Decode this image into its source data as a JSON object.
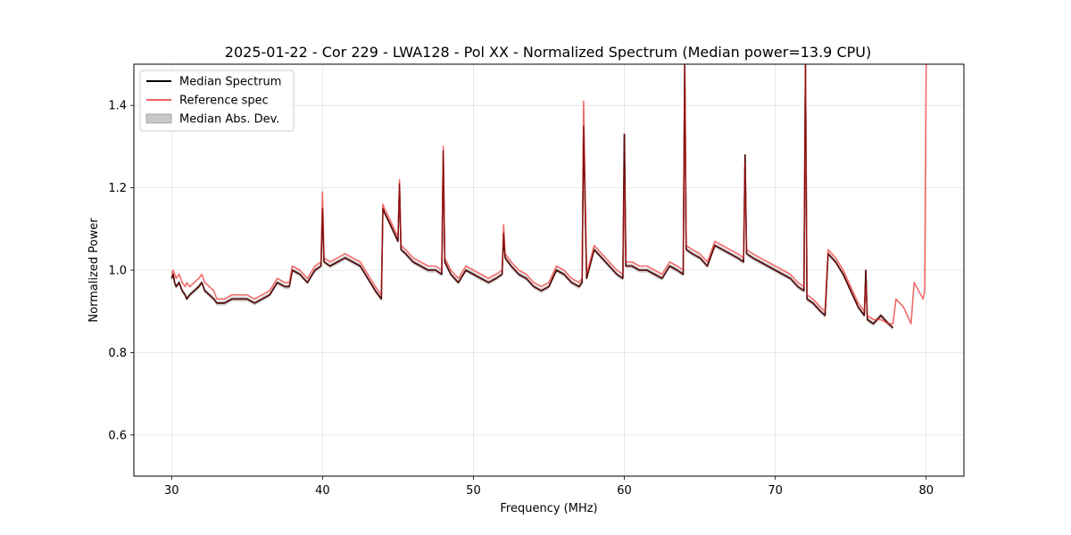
{
  "chart_data": {
    "type": "line",
    "title": "2025-01-22 - Cor 229 - LWA128 - Pol XX - Normalized Spectrum (Median power=13.9 CPU)",
    "xlabel": "Frequency (MHz)",
    "ylabel": "Normalized Power",
    "xlim": [
      27.5,
      82.5
    ],
    "ylim": [
      0.5,
      1.5
    ],
    "xticks": [
      30,
      40,
      50,
      60,
      70,
      80
    ],
    "yticks": [
      0.6,
      0.8,
      1.0,
      1.2,
      1.4
    ],
    "xtick_labels": [
      "30",
      "40",
      "50",
      "60",
      "70",
      "80"
    ],
    "ytick_labels": [
      "0.6",
      "0.8",
      "1.0",
      "1.2",
      "1.4"
    ],
    "grid": true,
    "legend_position": "top-left",
    "colors": {
      "median": "#000000",
      "reference": "#f06262",
      "mad": "#a8a8a8",
      "overlap": "#7a0000"
    },
    "legend": [
      {
        "label": "Median Spectrum",
        "kind": "line",
        "color": "#000000"
      },
      {
        "label": "Reference spec",
        "kind": "line",
        "color": "#f06262"
      },
      {
        "label": "Median Abs. Dev.",
        "kind": "patch",
        "color": "#c8c8c8"
      }
    ],
    "series": [
      {
        "name": "Reference spec",
        "x": [
          30.0,
          30.1,
          30.2,
          30.3,
          30.5,
          30.7,
          30.9,
          31.0,
          31.2,
          31.5,
          31.8,
          32.0,
          32.2,
          32.5,
          32.8,
          33.0,
          33.5,
          34.0,
          34.5,
          35.0,
          35.5,
          36.0,
          36.5,
          37.0,
          37.5,
          37.8,
          38.0,
          38.5,
          39.0,
          39.5,
          39.9,
          40.0,
          40.1,
          40.5,
          41.0,
          41.5,
          42.0,
          42.5,
          43.0,
          43.5,
          43.9,
          44.0,
          44.1,
          44.5,
          45.0,
          45.1,
          45.2,
          45.5,
          46.0,
          46.5,
          47.0,
          47.5,
          47.9,
          48.0,
          48.1,
          48.5,
          49.0,
          49.5,
          50.0,
          50.5,
          51.0,
          51.5,
          51.9,
          52.0,
          52.1,
          52.5,
          53.0,
          53.5,
          54.0,
          54.5,
          55.0,
          55.5,
          56.0,
          56.5,
          57.0,
          57.2,
          57.3,
          57.5,
          58.0,
          58.5,
          59.0,
          59.5,
          59.9,
          60.0,
          60.1,
          60.5,
          61.0,
          61.5,
          62.0,
          62.5,
          63.0,
          63.5,
          63.9,
          64.0,
          64.1,
          64.5,
          65.0,
          65.5,
          66.0,
          66.5,
          67.0,
          67.5,
          67.9,
          68.0,
          68.1,
          68.5,
          69.0,
          69.5,
          70.0,
          70.5,
          71.0,
          71.5,
          71.9,
          72.0,
          72.1,
          72.5,
          73.0,
          73.3,
          73.5,
          74.0,
          74.5,
          75.0,
          75.5,
          75.9,
          76.0,
          76.1,
          76.5,
          77.0,
          77.5,
          77.8,
          78.0,
          78.5,
          79.0,
          79.2,
          79.5,
          79.8,
          79.9,
          80.0
        ],
        "values": [
          0.99,
          1.0,
          0.99,
          0.98,
          0.99,
          0.97,
          0.96,
          0.97,
          0.96,
          0.97,
          0.98,
          0.99,
          0.97,
          0.96,
          0.95,
          0.93,
          0.93,
          0.94,
          0.94,
          0.94,
          0.93,
          0.94,
          0.95,
          0.98,
          0.97,
          0.97,
          1.01,
          1.0,
          0.98,
          1.01,
          1.02,
          1.19,
          1.03,
          1.02,
          1.03,
          1.04,
          1.03,
          1.02,
          0.99,
          0.96,
          0.94,
          1.16,
          1.15,
          1.12,
          1.08,
          1.22,
          1.06,
          1.05,
          1.03,
          1.02,
          1.01,
          1.01,
          1.0,
          1.3,
          1.03,
          1.0,
          0.98,
          1.01,
          1.0,
          0.99,
          0.98,
          0.99,
          1.0,
          1.11,
          1.04,
          1.02,
          1.0,
          0.99,
          0.97,
          0.96,
          0.97,
          1.01,
          1.0,
          0.98,
          0.97,
          0.98,
          1.41,
          0.99,
          1.06,
          1.04,
          1.02,
          1.0,
          0.99,
          1.24,
          1.02,
          1.02,
          1.01,
          1.01,
          1.0,
          0.99,
          1.02,
          1.01,
          1.0,
          1.5,
          1.06,
          1.05,
          1.04,
          1.02,
          1.07,
          1.06,
          1.05,
          1.04,
          1.03,
          1.26,
          1.05,
          1.04,
          1.03,
          1.02,
          1.01,
          1.0,
          0.99,
          0.97,
          0.96,
          1.5,
          0.94,
          0.93,
          0.91,
          0.9,
          1.05,
          1.03,
          1.0,
          0.96,
          0.92,
          0.9,
          0.97,
          0.89,
          0.88,
          0.88,
          0.87,
          0.87,
          0.93,
          0.91,
          0.87,
          0.97,
          0.95,
          0.93,
          0.95,
          1.5
        ]
      },
      {
        "name": "Median Spectrum",
        "x": [
          30.0,
          30.1,
          30.2,
          30.3,
          30.5,
          30.7,
          30.9,
          31.0,
          31.2,
          31.5,
          31.8,
          32.0,
          32.2,
          32.5,
          32.8,
          33.0,
          33.5,
          34.0,
          34.5,
          35.0,
          35.5,
          36.0,
          36.5,
          37.0,
          37.5,
          37.8,
          38.0,
          38.5,
          39.0,
          39.5,
          39.9,
          40.0,
          40.1,
          40.5,
          41.0,
          41.5,
          42.0,
          42.5,
          43.0,
          43.5,
          43.9,
          44.0,
          44.1,
          44.5,
          45.0,
          45.1,
          45.2,
          45.5,
          46.0,
          46.5,
          47.0,
          47.5,
          47.9,
          48.0,
          48.1,
          48.5,
          49.0,
          49.5,
          50.0,
          50.5,
          51.0,
          51.5,
          51.9,
          52.0,
          52.1,
          52.5,
          53.0,
          53.5,
          54.0,
          54.5,
          55.0,
          55.5,
          56.0,
          56.5,
          57.0,
          57.2,
          57.3,
          57.5,
          58.0,
          58.5,
          59.0,
          59.5,
          59.9,
          60.0,
          60.1,
          60.5,
          61.0,
          61.5,
          62.0,
          62.5,
          63.0,
          63.5,
          63.9,
          64.0,
          64.1,
          64.5,
          65.0,
          65.5,
          66.0,
          66.5,
          67.0,
          67.5,
          67.9,
          68.0,
          68.1,
          68.5,
          69.0,
          69.5,
          70.0,
          70.5,
          71.0,
          71.5,
          71.9,
          72.0,
          72.1,
          72.5,
          73.0,
          73.3,
          73.5,
          74.0,
          74.5,
          75.0,
          75.5,
          75.9,
          76.0,
          76.1,
          76.5,
          77.0,
          77.5,
          77.8
        ],
        "values": [
          0.98,
          0.99,
          0.97,
          0.96,
          0.97,
          0.95,
          0.94,
          0.93,
          0.94,
          0.95,
          0.96,
          0.97,
          0.95,
          0.94,
          0.93,
          0.92,
          0.92,
          0.93,
          0.93,
          0.93,
          0.92,
          0.93,
          0.94,
          0.97,
          0.96,
          0.96,
          1.0,
          0.99,
          0.97,
          1.0,
          1.01,
          1.15,
          1.02,
          1.01,
          1.02,
          1.03,
          1.02,
          1.01,
          0.98,
          0.95,
          0.93,
          1.15,
          1.14,
          1.11,
          1.07,
          1.21,
          1.05,
          1.04,
          1.02,
          1.01,
          1.0,
          1.0,
          0.99,
          1.29,
          1.02,
          0.99,
          0.97,
          1.0,
          0.99,
          0.98,
          0.97,
          0.98,
          0.99,
          1.09,
          1.03,
          1.01,
          0.99,
          0.98,
          0.96,
          0.95,
          0.96,
          1.0,
          0.99,
          0.97,
          0.96,
          0.97,
          1.35,
          0.98,
          1.05,
          1.03,
          1.01,
          0.99,
          0.98,
          1.33,
          1.01,
          1.01,
          1.0,
          1.0,
          0.99,
          0.98,
          1.01,
          1.0,
          0.99,
          1.5,
          1.05,
          1.04,
          1.03,
          1.01,
          1.06,
          1.05,
          1.04,
          1.03,
          1.02,
          1.28,
          1.04,
          1.03,
          1.02,
          1.01,
          1.0,
          0.99,
          0.98,
          0.96,
          0.95,
          1.5,
          0.93,
          0.92,
          0.9,
          0.89,
          1.04,
          1.02,
          0.99,
          0.95,
          0.91,
          0.89,
          1.0,
          0.88,
          0.87,
          0.89,
          0.87,
          0.86
        ]
      }
    ]
  }
}
